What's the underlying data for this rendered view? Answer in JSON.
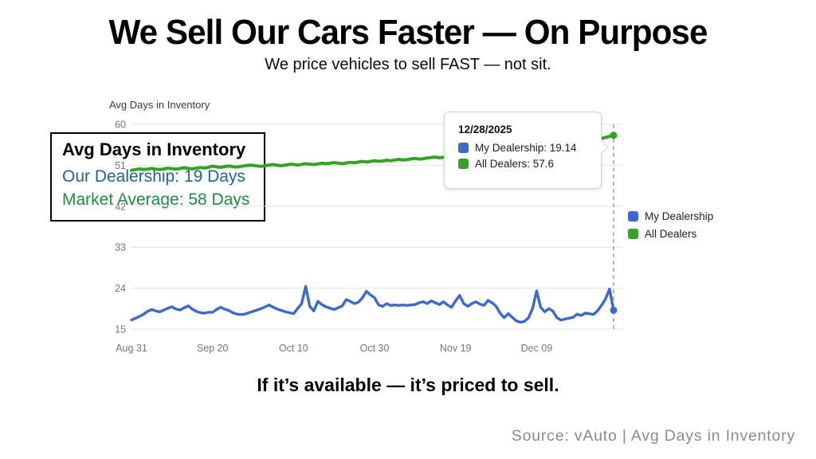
{
  "slide": {
    "title": "We Sell Our Cars Faster — On Purpose",
    "subtitle": "We price vehicles to sell FAST — not sit.",
    "statement": "If it’s available — it’s priced to sell.",
    "source": "Source: vAuto | Avg Days in Inventory"
  },
  "callout": {
    "title": "Avg Days in Inventory",
    "line1": "Our Dealership: 19 Days",
    "line1_color": "#1d6499",
    "line2": "Market Average: 58 Days",
    "line2_color": "#1e8e3e"
  },
  "tooltip": {
    "date": "12/28/2025",
    "rows": [
      {
        "label": "My Dealership: 19.14",
        "color": "#3c69d0"
      },
      {
        "label": "All Dealers: 57.6",
        "color": "#34a224"
      }
    ]
  },
  "legend": [
    {
      "label": "My Dealership",
      "color": "#3c69d0"
    },
    {
      "label": "All Dealers",
      "color": "#34a224"
    }
  ],
  "chart_data": {
    "type": "line",
    "title": "Avg Days in Inventory",
    "xlabel": "",
    "ylabel": "",
    "ylim": [
      15,
      60
    ],
    "yticks": [
      60,
      51,
      42,
      33,
      24,
      15
    ],
    "xticks": [
      {
        "label": "Aug 31",
        "day": 0
      },
      {
        "label": "Sep 20",
        "day": 20
      },
      {
        "label": "Oct 10",
        "day": 40
      },
      {
        "label": "Oct 30",
        "day": 60
      },
      {
        "label": "Nov 19",
        "day": 80
      },
      {
        "label": "Dec 09",
        "day": 100
      }
    ],
    "grid_on": true,
    "grid_color": "#e3e3e3",
    "label_color": "#757575",
    "highlight_color": "#9b9b9b",
    "legend_position": "right",
    "highlight": {
      "day": 119,
      "date": "12/28/2025",
      "my_dealership": 19.14,
      "all_dealers": 57.6
    },
    "series": [
      {
        "name": "My Dealership",
        "color": "#3c69d0",
        "values": [
          17.0,
          17.4,
          17.8,
          18.3,
          18.9,
          19.3,
          19.0,
          18.8,
          19.2,
          19.6,
          19.9,
          19.4,
          19.2,
          19.7,
          20.1,
          19.4,
          18.9,
          18.6,
          18.5,
          18.7,
          18.7,
          19.3,
          19.8,
          19.4,
          19.1,
          18.6,
          18.3,
          18.2,
          18.3,
          18.6,
          18.9,
          19.2,
          19.5,
          19.9,
          20.3,
          19.8,
          19.4,
          19.1,
          18.8,
          18.6,
          18.4,
          19.5,
          20.6,
          24.4,
          20.0,
          19.0,
          21.1,
          20.4,
          19.9,
          19.6,
          19.3,
          19.7,
          20.1,
          21.5,
          21.1,
          20.6,
          20.9,
          21.9,
          23.3,
          22.5,
          21.9,
          20.3,
          20.0,
          20.6,
          20.2,
          20.3,
          20.2,
          20.3,
          20.2,
          20.3,
          20.4,
          20.8,
          21.0,
          20.6,
          21.2,
          20.8,
          20.4,
          21.0,
          20.3,
          19.8,
          21.2,
          22.4,
          20.6,
          20.0,
          20.6,
          21.0,
          20.5,
          20.2,
          21.3,
          20.8,
          20.0,
          18.5,
          17.5,
          18.4,
          17.6,
          16.8,
          16.5,
          16.7,
          17.5,
          19.5,
          23.4,
          19.8,
          18.8,
          19.5,
          19.0,
          17.5,
          17.0,
          17.2,
          17.4,
          17.6,
          18.3,
          18.0,
          18.5,
          18.4,
          18.2,
          19.0,
          20.2,
          21.6,
          23.8,
          19.14
        ]
      },
      {
        "name": "All Dealers",
        "color": "#34a224",
        "values": [
          49.9,
          50.05,
          50.2,
          50.05,
          50.15,
          50.3,
          50.15,
          50.05,
          50.2,
          50.35,
          50.25,
          50.15,
          50.3,
          50.45,
          50.3,
          50.2,
          50.35,
          50.5,
          50.4,
          50.55,
          50.8,
          50.65,
          50.55,
          50.7,
          50.85,
          50.7,
          50.6,
          50.75,
          50.9,
          51.0,
          51.0,
          50.85,
          50.75,
          50.9,
          51.05,
          51.15,
          51.0,
          50.9,
          51.05,
          51.2,
          51.2,
          51.05,
          51.2,
          51.35,
          51.25,
          51.15,
          51.3,
          51.45,
          51.35,
          51.45,
          51.6,
          51.45,
          51.35,
          51.5,
          51.65,
          51.55,
          51.7,
          51.85,
          51.7,
          51.85,
          52.0,
          51.85,
          51.95,
          52.1,
          52.0,
          52.15,
          52.3,
          52.15,
          52.25,
          52.4,
          52.5,
          52.35,
          52.45,
          52.6,
          52.7,
          52.8,
          52.65,
          52.75,
          52.9,
          53.0,
          53.1,
          52.95,
          53.05,
          53.2,
          53.3,
          53.2,
          53.35,
          53.5,
          53.4,
          53.55,
          53.9,
          53.75,
          53.9,
          54.05,
          54.2,
          54.4,
          54.5,
          54.6,
          54.7,
          54.85,
          55.0,
          55.1,
          55.2,
          55.35,
          55.45,
          55.6,
          55.7,
          55.8,
          55.95,
          56.1,
          56.2,
          56.3,
          56.45,
          56.55,
          56.7,
          56.8,
          56.9,
          57.1,
          57.35,
          57.6
        ]
      }
    ]
  }
}
